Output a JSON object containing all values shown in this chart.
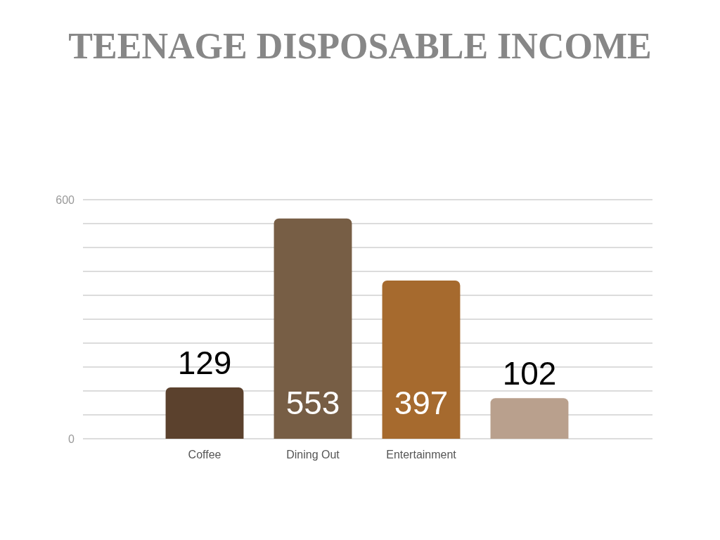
{
  "chart_data": {
    "type": "bar",
    "title": "TEENAGE DISPOSABLE INCOME",
    "categories": [
      "Coffee",
      "Dining Out",
      "Entertainment",
      null
    ],
    "values": [
      129,
      553,
      397,
      102
    ],
    "colors": [
      "#5b412d",
      "#775e45",
      "#a66a2e",
      "#b9a08d"
    ],
    "ylim": [
      0,
      600
    ],
    "yticks": [
      0,
      {
        "value": 60,
        "label": null
      },
      {
        "value": 120,
        "label": null
      },
      {
        "value": 180,
        "label": null
      },
      {
        "value": 240,
        "label": null
      },
      {
        "value": 300,
        "label": null
      },
      {
        "value": 360,
        "label": null
      },
      {
        "value": 420,
        "label": null
      },
      {
        "value": 480,
        "label": null
      },
      {
        "value": 540,
        "label": null
      },
      600
    ],
    "grid": "y",
    "data_labels": true
  }
}
